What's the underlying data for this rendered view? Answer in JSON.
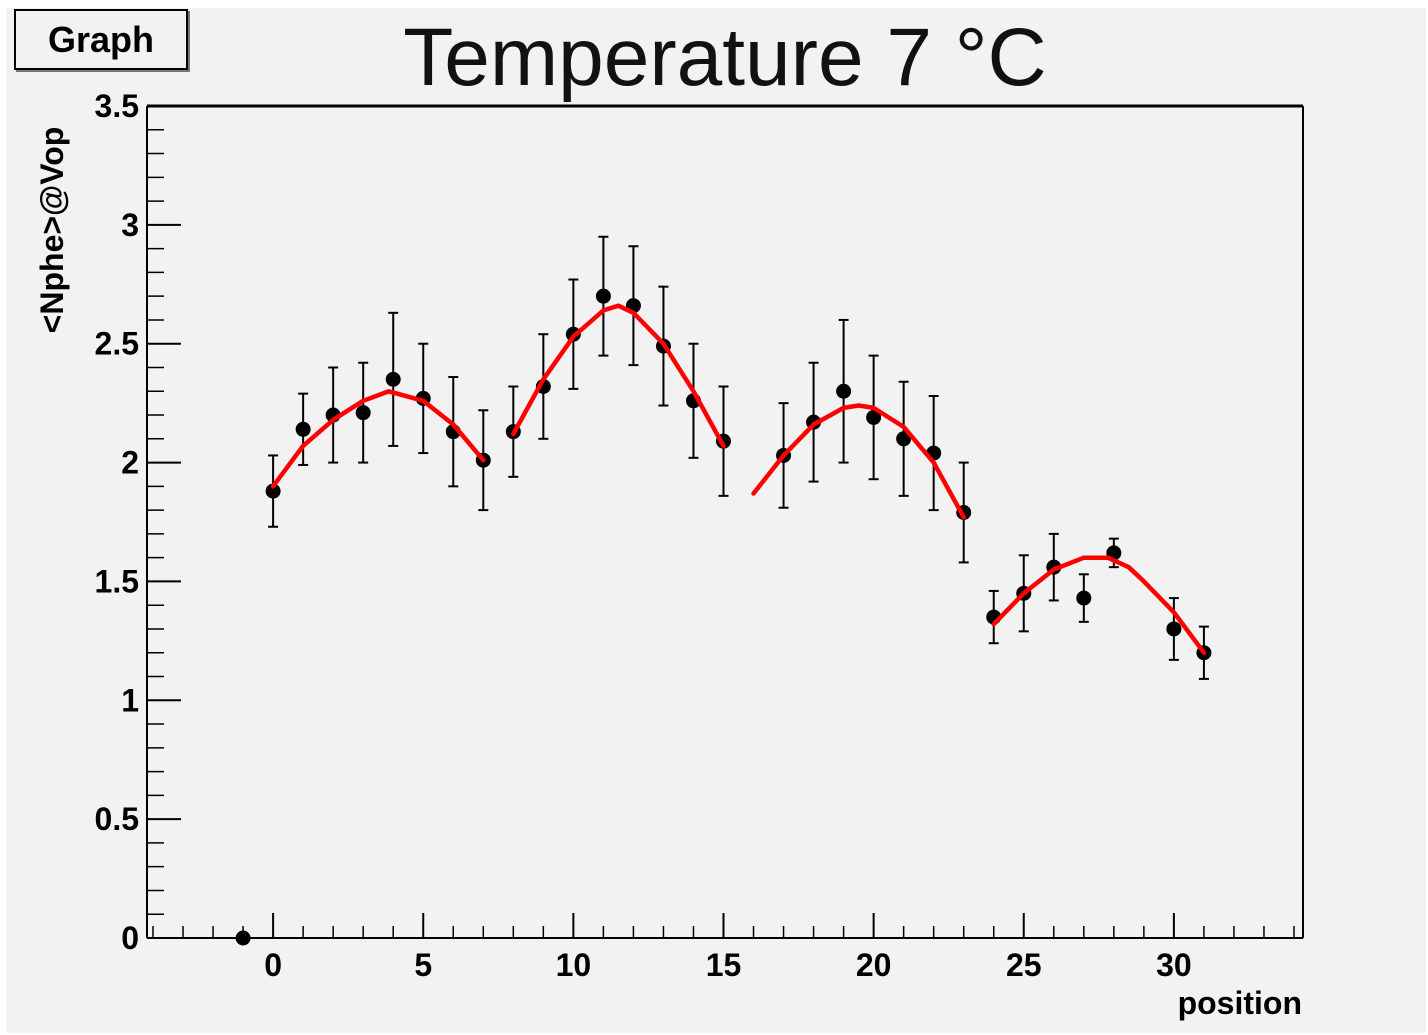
{
  "legend": {
    "label": "Graph"
  },
  "chart_data": {
    "type": "scatter",
    "title": "Temperature 7 °C",
    "xlabel": "position",
    "ylabel": "<Nphe>@Vop",
    "xlim": [
      -4.2,
      34.3
    ],
    "ylim": [
      0,
      3.5
    ],
    "x_ticks": [
      0,
      5,
      10,
      15,
      20,
      25,
      30
    ],
    "y_ticks": [
      0,
      0.5,
      1,
      1.5,
      2,
      2.5,
      3,
      3.5
    ],
    "grid": false,
    "series": [
      {
        "marker": "filled-circle",
        "color": "#000000",
        "x": [
          -1,
          0,
          1,
          2,
          3,
          4,
          5,
          6,
          7,
          8,
          9,
          10,
          11,
          12,
          13,
          14,
          15,
          17,
          18,
          19,
          20,
          21,
          22,
          23,
          24,
          25,
          26,
          27,
          28,
          30,
          31
        ],
        "y": [
          0,
          1.88,
          2.14,
          2.2,
          2.21,
          2.35,
          2.27,
          2.13,
          2.01,
          2.13,
          2.32,
          2.54,
          2.7,
          2.66,
          2.49,
          2.26,
          2.09,
          2.03,
          2.17,
          2.3,
          2.19,
          2.1,
          2.04,
          1.79,
          1.35,
          1.45,
          1.56,
          1.43,
          1.62,
          1.3,
          1.2
        ],
        "error": [
          0,
          0.15,
          0.15,
          0.2,
          0.21,
          0.28,
          0.23,
          0.23,
          0.21,
          0.19,
          0.22,
          0.23,
          0.25,
          0.25,
          0.25,
          0.24,
          0.23,
          0.22,
          0.25,
          0.3,
          0.26,
          0.24,
          0.24,
          0.21,
          0.11,
          0.16,
          0.14,
          0.1,
          0.06,
          0.13,
          0.11
        ]
      }
    ],
    "fits": [
      {
        "color": "#ff0000",
        "x": [
          0,
          1,
          2,
          3,
          3.85,
          5,
          6,
          7
        ],
        "y": [
          1.9,
          2.07,
          2.18,
          2.26,
          2.3,
          2.26,
          2.16,
          2.01
        ]
      },
      {
        "color": "#ff0000",
        "x": [
          8,
          9,
          10,
          11,
          11.5,
          12,
          13,
          14,
          15
        ],
        "y": [
          2.12,
          2.35,
          2.53,
          2.64,
          2.66,
          2.63,
          2.5,
          2.3,
          2.07
        ]
      },
      {
        "color": "#ff0000",
        "x": [
          16,
          17,
          18,
          19,
          19.5,
          20,
          21,
          22,
          23
        ],
        "y": [
          1.87,
          2.03,
          2.16,
          2.23,
          2.24,
          2.23,
          2.15,
          2.0,
          1.77
        ]
      },
      {
        "color": "#ff0000",
        "x": [
          24,
          25,
          26,
          27,
          27.8,
          28.5,
          29,
          30,
          31
        ],
        "y": [
          1.32,
          1.45,
          1.55,
          1.6,
          1.6,
          1.56,
          1.5,
          1.37,
          1.2
        ]
      }
    ]
  }
}
